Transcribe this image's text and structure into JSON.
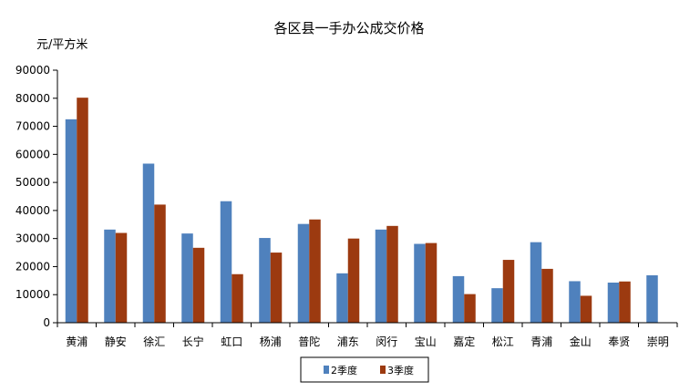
{
  "chart_data": {
    "type": "bar",
    "title": "各区县一手办公成交价格",
    "ylabel": "元/平方米",
    "xlabel": "",
    "ylim": [
      0,
      90000
    ],
    "yticks": [
      0,
      10000,
      20000,
      30000,
      40000,
      50000,
      60000,
      70000,
      80000,
      90000
    ],
    "grid": false,
    "legend_position": "bottom",
    "categories": [
      "黄浦",
      "静安",
      "徐汇",
      "长宁",
      "虹口",
      "杨浦",
      "普陀",
      "浦东",
      "闵行",
      "宝山",
      "嘉定",
      "松江",
      "青浦",
      "金山",
      "奉贤",
      "崇明"
    ],
    "series": [
      {
        "name": "2季度",
        "color": "#4f81bd",
        "values": [
          72500,
          33200,
          56700,
          31800,
          43300,
          30200,
          35200,
          17600,
          33200,
          28100,
          16600,
          12300,
          28700,
          14800,
          14300,
          16900
        ]
      },
      {
        "name": "3季度",
        "color": "#9c3a10",
        "values": [
          80200,
          32000,
          42100,
          26700,
          17300,
          25000,
          36800,
          30000,
          34500,
          28400,
          10200,
          22400,
          19200,
          9600,
          14700,
          null
        ]
      }
    ]
  }
}
